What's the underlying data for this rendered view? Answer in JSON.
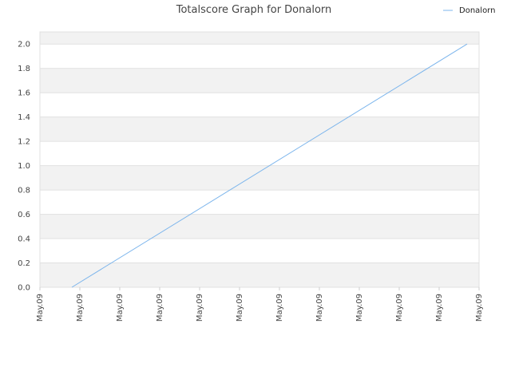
{
  "chart_data": {
    "type": "line",
    "title": "Totalscore Graph for Donalorn",
    "xlabel": "",
    "ylabel": "",
    "x_tick_labels": [
      "May.09",
      "May.09",
      "May.09",
      "May.09",
      "May.09",
      "May.09",
      "May.09",
      "May.09",
      "May.09",
      "May.09",
      "May.09",
      "May.09"
    ],
    "y_ticks": [
      "0.0",
      "0.2",
      "0.4",
      "0.6",
      "0.8",
      "1.0",
      "1.2",
      "1.4",
      "1.6",
      "1.8",
      "2.0"
    ],
    "ylim": [
      0,
      2.1
    ],
    "series": [
      {
        "name": "Donalorn",
        "color": "#7cb5ec",
        "x": [
          0.8,
          10.7
        ],
        "values": [
          0,
          2.0
        ]
      }
    ],
    "grid": "alternating horizontal bands",
    "legend_position": "top-right"
  }
}
